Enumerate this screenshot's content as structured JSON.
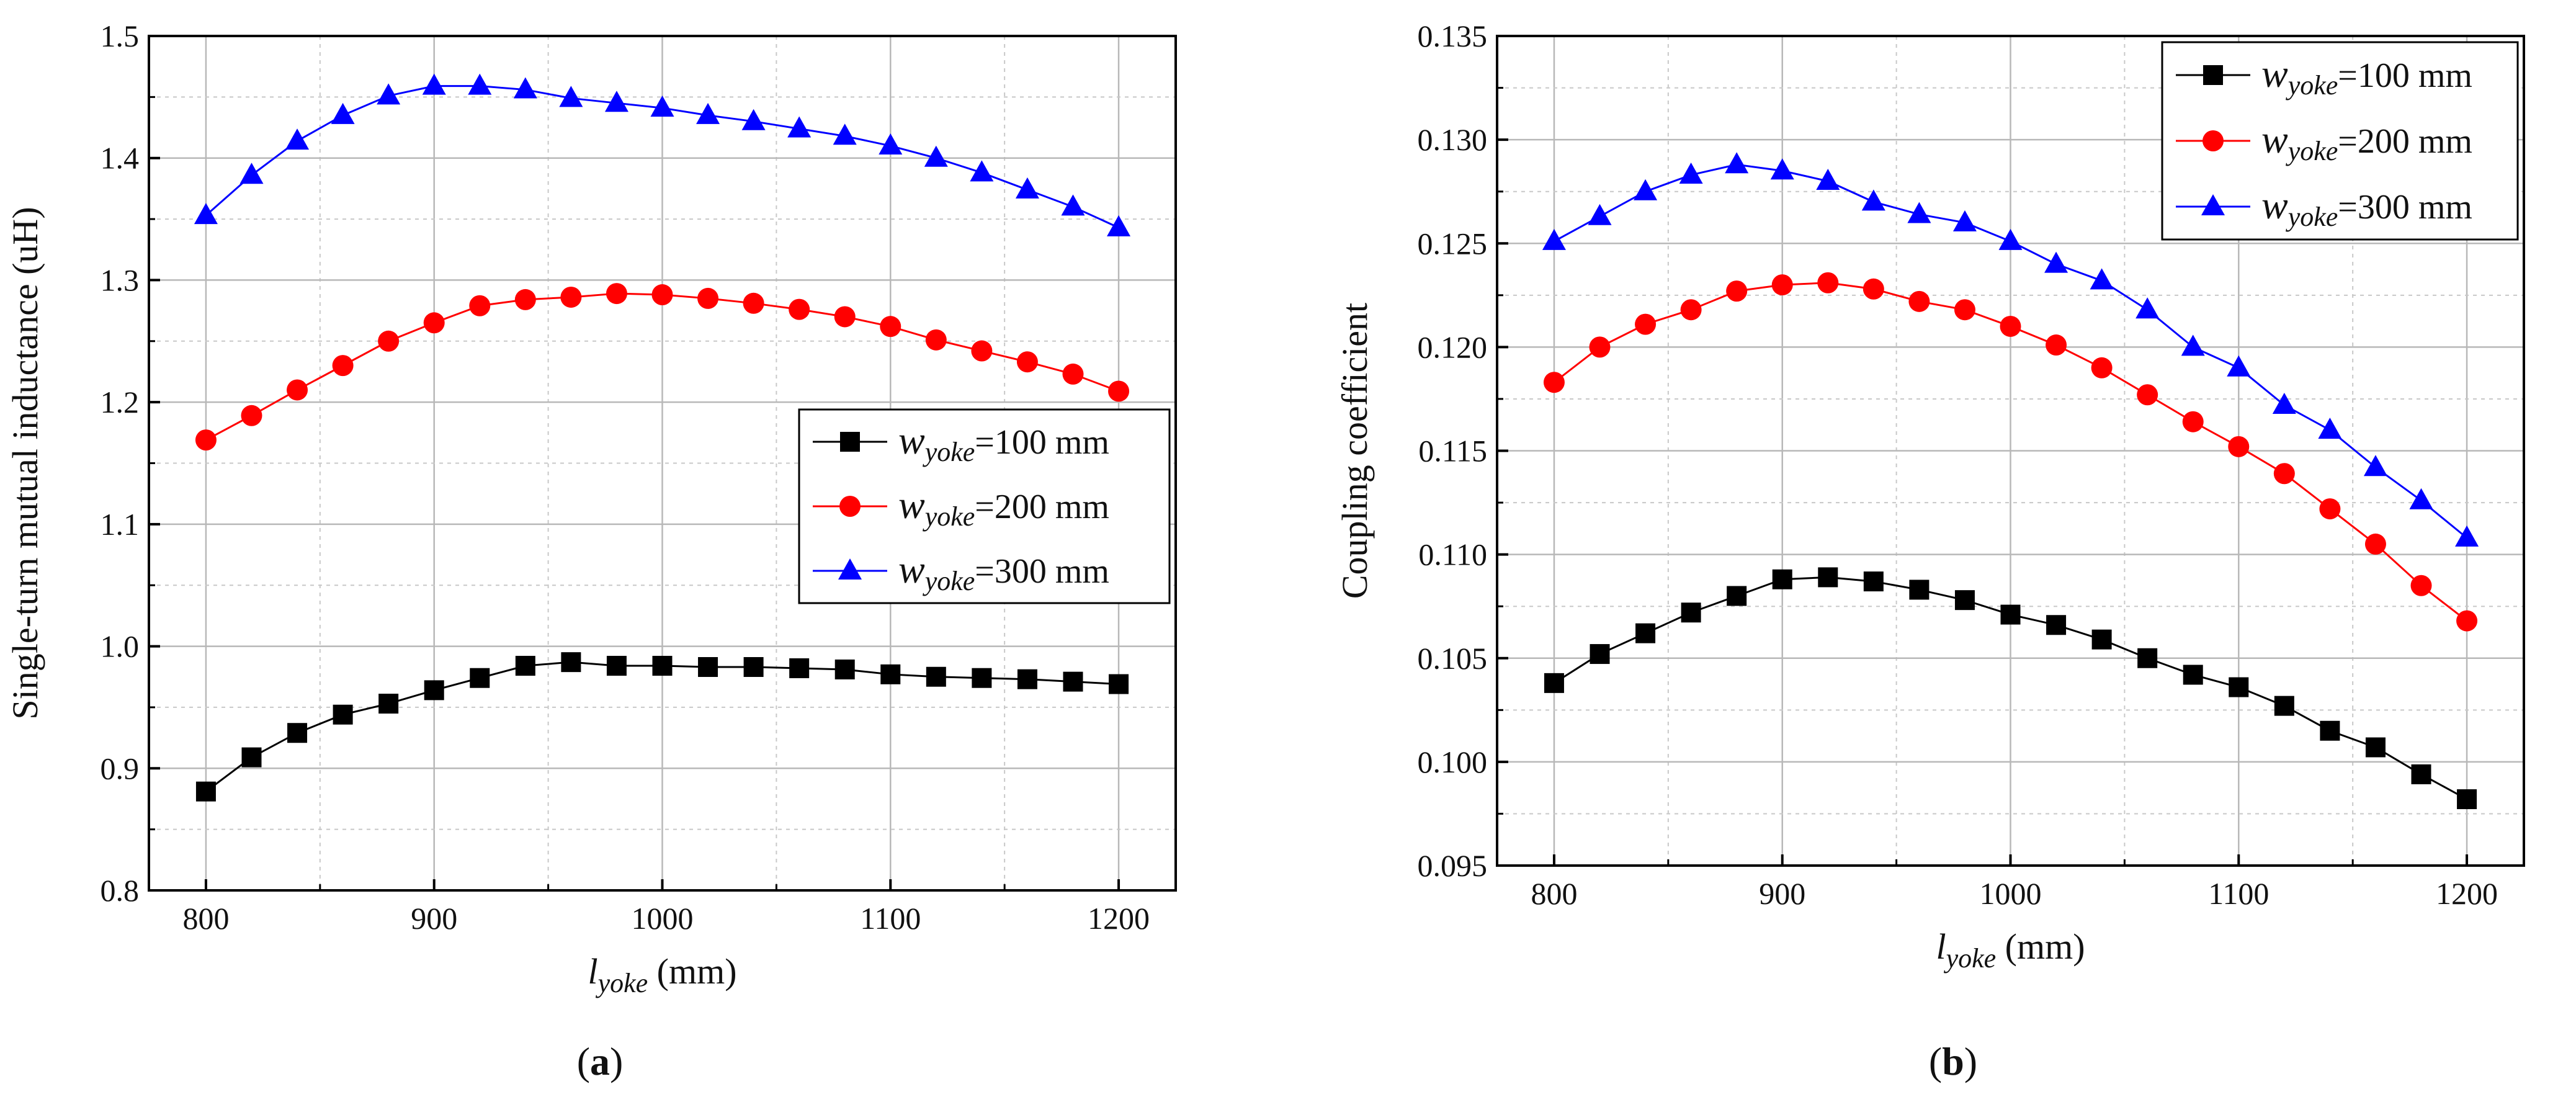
{
  "chart_data": [
    {
      "type": "line",
      "caption": "a",
      "xlabel": {
        "main": "l",
        "sub": "yoke",
        "unit": " (mm)"
      },
      "ylabel": "Single-turn mutual inductance (uH)",
      "xlim": [
        775,
        1225
      ],
      "ylim": [
        0.8,
        1.5
      ],
      "x_ticks": [
        "800",
        "900",
        "1000",
        "1100",
        "1200"
      ],
      "y_ticks": [
        "0.8",
        "0.9",
        "1.0",
        "1.1",
        "1.2",
        "1.3",
        "1.4",
        "1.5"
      ],
      "x_tick_values": [
        800,
        900,
        1000,
        1100,
        1200
      ],
      "y_tick_values": [
        0.8,
        0.9,
        1.0,
        1.1,
        1.2,
        1.3,
        1.4,
        1.5
      ],
      "x_minor_values": [
        850,
        950,
        1050,
        1150
      ],
      "y_minor_values": [
        0.85,
        0.95,
        1.05,
        1.15,
        1.25,
        1.35,
        1.45
      ],
      "grid": true,
      "legend_position": "center-right",
      "x": [
        800,
        820,
        840,
        860,
        880,
        900,
        920,
        940,
        960,
        980,
        1000,
        1020,
        1040,
        1060,
        1080,
        1100,
        1120,
        1140,
        1160,
        1180,
        1200
      ],
      "series": [
        {
          "name": "w",
          "sub": "yoke",
          "suffix": "=100 mm",
          "marker": "square",
          "color": "#000000",
          "values": [
            0.881,
            0.909,
            0.929,
            0.944,
            0.953,
            0.964,
            0.974,
            0.984,
            0.987,
            0.984,
            0.984,
            0.983,
            0.983,
            0.982,
            0.981,
            0.977,
            0.975,
            0.974,
            0.973,
            0.971,
            0.969
          ]
        },
        {
          "name": "w",
          "sub": "yoke",
          "suffix": "=200 mm",
          "marker": "circle",
          "color": "#ff0000",
          "values": [
            1.169,
            1.189,
            1.21,
            1.23,
            1.25,
            1.265,
            1.279,
            1.284,
            1.286,
            1.289,
            1.288,
            1.285,
            1.281,
            1.276,
            1.27,
            1.262,
            1.251,
            1.242,
            1.233,
            1.223,
            1.209
          ]
        },
        {
          "name": "w",
          "sub": "yoke",
          "suffix": "=300 mm",
          "marker": "triangle",
          "color": "#0000ff",
          "values": [
            1.353,
            1.386,
            1.414,
            1.435,
            1.451,
            1.459,
            1.459,
            1.456,
            1.449,
            1.445,
            1.441,
            1.435,
            1.43,
            1.424,
            1.418,
            1.41,
            1.4,
            1.388,
            1.374,
            1.36,
            1.343
          ]
        }
      ]
    },
    {
      "type": "line",
      "caption": "b",
      "xlabel": {
        "main": "l",
        "sub": "yoke",
        "unit": " (mm)"
      },
      "ylabel": "Coupling coefficient",
      "xlim": [
        775,
        1225
      ],
      "ylim": [
        0.095,
        0.135
      ],
      "x_ticks": [
        "800",
        "900",
        "1000",
        "1100",
        "1200"
      ],
      "y_ticks": [
        "0.095",
        "0.100",
        "0.105",
        "0.110",
        "0.115",
        "0.120",
        "0.125",
        "0.130",
        "0.135"
      ],
      "x_tick_values": [
        800,
        900,
        1000,
        1100,
        1200
      ],
      "y_tick_values": [
        0.095,
        0.1,
        0.105,
        0.11,
        0.115,
        0.12,
        0.125,
        0.13,
        0.135
      ],
      "x_minor_values": [
        850,
        950,
        1050,
        1150
      ],
      "y_minor_values": [
        0.0975,
        0.1025,
        0.1075,
        0.1125,
        0.1175,
        0.1225,
        0.1275,
        0.1325
      ],
      "grid": true,
      "legend_position": "top-right",
      "x": [
        800,
        820,
        840,
        860,
        880,
        900,
        920,
        940,
        960,
        980,
        1000,
        1020,
        1040,
        1060,
        1080,
        1100,
        1120,
        1140,
        1160,
        1180,
        1200
      ],
      "series": [
        {
          "name": "w",
          "sub": "yoke",
          "suffix": "=100 mm",
          "marker": "square",
          "color": "#000000",
          "values": [
            0.1038,
            0.1052,
            0.1062,
            0.1072,
            0.108,
            0.1088,
            0.1089,
            0.1087,
            0.1083,
            0.1078,
            0.1071,
            0.1066,
            0.1059,
            0.105,
            0.1042,
            0.1036,
            0.1027,
            0.1015,
            0.1007,
            0.0994,
            0.0982
          ]
        },
        {
          "name": "w",
          "sub": "yoke",
          "suffix": "=200 mm",
          "marker": "circle",
          "color": "#ff0000",
          "values": [
            0.1183,
            0.12,
            0.1211,
            0.1218,
            0.1227,
            0.123,
            0.1231,
            0.1228,
            0.1222,
            0.1218,
            0.121,
            0.1201,
            0.119,
            0.1177,
            0.1164,
            0.1152,
            0.1139,
            0.1122,
            0.1105,
            0.1085,
            0.1068
          ]
        },
        {
          "name": "w",
          "sub": "yoke",
          "suffix": "=300 mm",
          "marker": "triangle",
          "color": "#0000ff",
          "values": [
            0.1251,
            0.1263,
            0.1275,
            0.1283,
            0.1288,
            0.1285,
            0.128,
            0.127,
            0.1264,
            0.126,
            0.1251,
            0.124,
            0.1232,
            0.1218,
            0.12,
            0.119,
            0.1172,
            0.116,
            0.1142,
            0.1126,
            0.1108
          ]
        }
      ]
    }
  ]
}
